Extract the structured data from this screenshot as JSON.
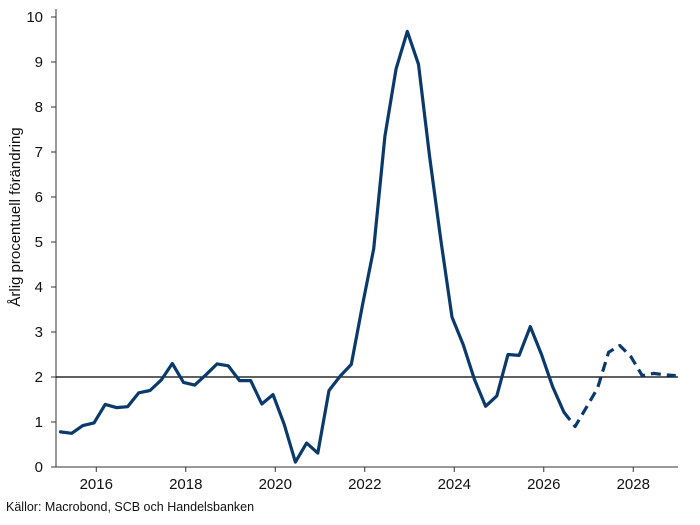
{
  "chart_data": {
    "type": "line",
    "ylabel": "Årlig procentuell förändring",
    "xlabel": "",
    "ylim": [
      0,
      10
    ],
    "xlim": [
      2015.1,
      2029.0
    ],
    "yticks": [
      0,
      1,
      2,
      3,
      4,
      5,
      6,
      7,
      8,
      9,
      10
    ],
    "xticks": [
      2016,
      2018,
      2020,
      2022,
      2024,
      2026,
      2028
    ],
    "xtick_labels": [
      "2016",
      "2018",
      "2020",
      "2022",
      "2024",
      "2026",
      "2028"
    ],
    "reference_line": {
      "y": 2,
      "color": "#000000"
    },
    "grid": false,
    "legend": "none",
    "series": [
      {
        "style": "solid",
        "color": "#0a3a6b",
        "points": [
          [
            2015.2,
            0.78
          ],
          [
            2015.45,
            0.75
          ],
          [
            2015.7,
            0.92
          ],
          [
            2015.95,
            0.98
          ],
          [
            2016.2,
            1.39
          ],
          [
            2016.45,
            1.32
          ],
          [
            2016.7,
            1.34
          ],
          [
            2016.95,
            1.65
          ],
          [
            2017.2,
            1.7
          ],
          [
            2017.45,
            1.93
          ],
          [
            2017.7,
            2.3
          ],
          [
            2017.95,
            1.88
          ],
          [
            2018.2,
            1.82
          ],
          [
            2018.45,
            2.05
          ],
          [
            2018.7,
            2.29
          ],
          [
            2018.95,
            2.25
          ],
          [
            2019.2,
            1.92
          ],
          [
            2019.45,
            1.92
          ],
          [
            2019.7,
            1.4
          ],
          [
            2019.95,
            1.61
          ],
          [
            2020.2,
            0.95
          ],
          [
            2020.45,
            0.11
          ],
          [
            2020.7,
            0.53
          ],
          [
            2020.95,
            0.31
          ],
          [
            2021.2,
            1.7
          ],
          [
            2021.45,
            2.02
          ],
          [
            2021.7,
            2.28
          ],
          [
            2021.95,
            3.6
          ],
          [
            2022.2,
            4.85
          ],
          [
            2022.45,
            7.35
          ],
          [
            2022.7,
            8.85
          ],
          [
            2022.95,
            9.68
          ],
          [
            2023.2,
            8.95
          ],
          [
            2023.45,
            6.9
          ],
          [
            2023.7,
            5.05
          ],
          [
            2023.95,
            3.33
          ],
          [
            2024.2,
            2.72
          ],
          [
            2024.45,
            1.95
          ],
          [
            2024.7,
            1.35
          ],
          [
            2024.95,
            1.58
          ],
          [
            2025.2,
            2.5
          ],
          [
            2025.45,
            2.48
          ],
          [
            2025.7,
            3.12
          ],
          [
            2025.95,
            2.5
          ],
          [
            2026.2,
            1.78
          ],
          [
            2026.45,
            1.22
          ]
        ]
      },
      {
        "style": "dashed",
        "color": "#0a3a6b",
        "points": [
          [
            2026.45,
            1.22
          ],
          [
            2026.7,
            0.9
          ],
          [
            2026.95,
            1.32
          ],
          [
            2027.2,
            1.75
          ],
          [
            2027.45,
            2.55
          ],
          [
            2027.7,
            2.7
          ],
          [
            2027.95,
            2.45
          ],
          [
            2028.2,
            2.03
          ],
          [
            2028.45,
            2.08
          ],
          [
            2028.7,
            2.05
          ],
          [
            2028.95,
            2.03
          ]
        ]
      }
    ]
  },
  "source": "Källor: Macrobond, SCB och Handelsbanken"
}
